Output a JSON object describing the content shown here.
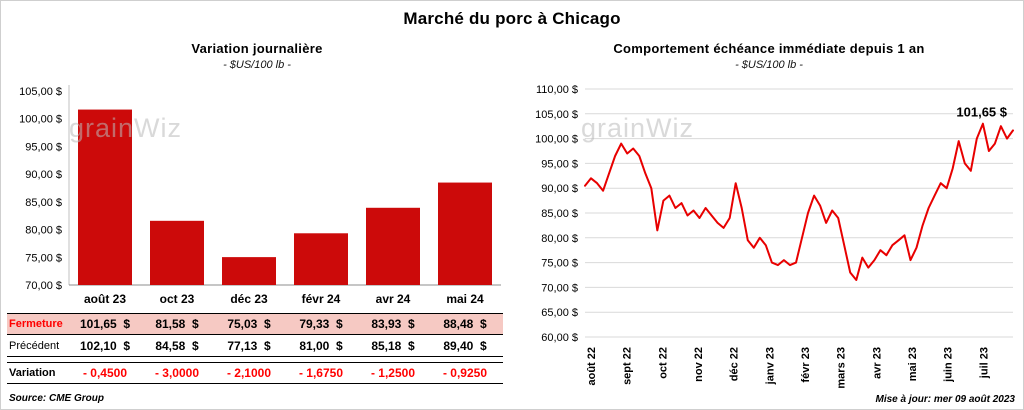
{
  "page": {
    "title": "Marché du porc à Chicago",
    "source": "Source: CME Group",
    "updated": "Mise à jour: mer 09 août 2023",
    "watermark": "grainWiz"
  },
  "colors": {
    "bar": "#CC0A0A",
    "line": "#E80000",
    "grid": "#D9D9D9",
    "fermeture_bg": "#F6C9C3",
    "negative_text": "#FF0000"
  },
  "table": {
    "rows": [
      {
        "label": "Fermeture",
        "style": "fermeture",
        "values": [
          "101,65  $",
          "81,58  $",
          "75,03  $",
          "79,33  $",
          "83,93  $",
          "88,48  $"
        ]
      },
      {
        "label": "Précédent",
        "style": "precedent",
        "values": [
          "102,10  $",
          "84,58  $",
          "77,13  $",
          "81,00  $",
          "85,18  $",
          "89,40  $"
        ]
      },
      {
        "label": "Variation",
        "style": "variation",
        "values": [
          "- 0,4500",
          "- 3,0000",
          "- 2,1000",
          "- 1,6750",
          "- 1,2500",
          "- 0,9250"
        ]
      }
    ]
  },
  "chart_data": [
    {
      "type": "bar",
      "title": "Variation journalière",
      "subtitle": "- $US/100 lb -",
      "categories": [
        "août 23",
        "oct 23",
        "déc 23",
        "févr 24",
        "avr 24",
        "mai 24"
      ],
      "values": [
        101.65,
        81.58,
        75.03,
        79.33,
        83.93,
        88.48
      ],
      "ylim": [
        70,
        105
      ],
      "ytick_step": 5,
      "ytick_format": "fr '0,00 $'",
      "grid": false,
      "legend": "none"
    },
    {
      "type": "line",
      "title": "Comportement échéance immédiate depuis 1 an",
      "subtitle": "- $US/100 lb -",
      "x_labels": [
        "août 22",
        "sept 22",
        "oct 22",
        "nov 22",
        "déc 22",
        "janv 23",
        "févr 23",
        "mars 23",
        "avr 23",
        "mai 23",
        "juin 23",
        "juil 23"
      ],
      "values": [
        90.5,
        92.0,
        91.0,
        89.5,
        93.0,
        96.5,
        99.0,
        97.0,
        98.0,
        96.5,
        93.0,
        90.0,
        81.5,
        87.5,
        88.5,
        86.0,
        87.0,
        84.5,
        85.5,
        84.0,
        86.0,
        84.5,
        83.0,
        82.0,
        84.0,
        91.0,
        86.0,
        79.5,
        78.0,
        80.0,
        78.5,
        75.0,
        74.5,
        75.5,
        74.5,
        75.0,
        80.0,
        85.0,
        88.5,
        86.5,
        83.0,
        85.5,
        84.0,
        78.5,
        73.0,
        71.5,
        76.0,
        74.0,
        75.5,
        77.5,
        76.5,
        78.5,
        79.5,
        80.5,
        75.5,
        78.0,
        82.5,
        86.0,
        88.5,
        91.0,
        90.0,
        94.0,
        99.5,
        95.0,
        93.5,
        100.0,
        103.0,
        97.5,
        99.0,
        102.5,
        100.0,
        101.65
      ],
      "ylim": [
        60,
        110
      ],
      "ytick_step": 5,
      "ytick_format": "fr '0,00 $'",
      "annotation": "101,65 $",
      "grid": true,
      "legend": "none"
    }
  ]
}
